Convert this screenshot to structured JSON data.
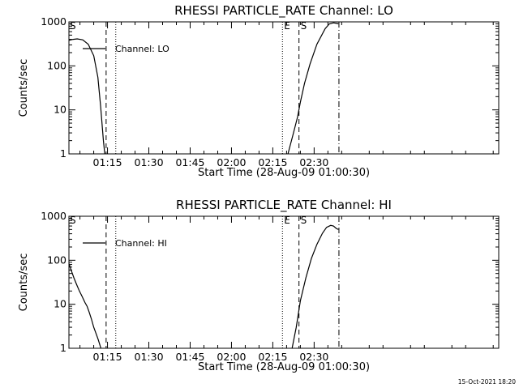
{
  "footer": {
    "timestamp": "15-Oct-2021 18:20"
  },
  "chart_data": [
    {
      "type": "line",
      "title": "RHESSI PARTICLE_RATE Channel: LO",
      "xlabel": "Start Time (28-Aug-09 01:00:30)",
      "ylabel": "Counts/sec",
      "yscale": "log",
      "ylim": [
        1,
        1000
      ],
      "xlim_min": [
        1.0,
        157.0
      ],
      "x_ticks_min": [
        15,
        30,
        45,
        60,
        75,
        90
      ],
      "x_tick_labels": [
        "01:15",
        "01:30",
        "01:45",
        "02:00",
        "02:15",
        "02:30"
      ],
      "y_ticks": [
        1,
        10,
        100,
        1000
      ],
      "y_tick_labels": [
        "1",
        "10",
        "100",
        "1000"
      ],
      "legend": {
        "placement": "top-left",
        "entries": [
          "Channel: LO"
        ]
      },
      "series": [
        {
          "x_min": [
            1.0,
            2.5,
            4.0,
            6.0,
            8.0,
            10.0,
            11.5,
            12.5,
            13.5,
            14.0
          ],
          "y": [
            380,
            400,
            410,
            390,
            310,
            170,
            55,
            12,
            2,
            1
          ]
        },
        {
          "x_min": [
            80.5,
            82.5,
            84.0,
            85.0,
            86.5,
            88.5,
            91.0,
            94.0,
            95.5,
            97.0,
            98.5,
            98.8
          ],
          "y": [
            1,
            3,
            7,
            15,
            40,
            110,
            310,
            700,
            900,
            950,
            920,
            900
          ]
        }
      ],
      "vlines": [
        {
          "x_min": 14.5,
          "style": "dashed",
          "label": ""
        },
        {
          "x_min": 18.0,
          "style": "dotted",
          "label": ""
        },
        {
          "x_min": 78.5,
          "style": "dotted",
          "label": "E"
        },
        {
          "x_min": 84.5,
          "style": "dashed",
          "label": "S"
        },
        {
          "x_min": 99.0,
          "style": "dashdot",
          "label": ""
        }
      ],
      "corner_label": "S"
    },
    {
      "type": "line",
      "title": "RHESSI PARTICLE_RATE Channel: HI",
      "xlabel": "Start Time (28-Aug-09 01:00:30)",
      "ylabel": "Counts/sec",
      "yscale": "log",
      "ylim": [
        1,
        1000
      ],
      "xlim_min": [
        1.0,
        157.0
      ],
      "x_ticks_min": [
        15,
        30,
        45,
        60,
        75,
        90
      ],
      "x_tick_labels": [
        "01:15",
        "01:30",
        "01:45",
        "02:00",
        "02:15",
        "02:30"
      ],
      "y_ticks": [
        1,
        10,
        100,
        1000
      ],
      "y_tick_labels": [
        "1",
        "10",
        "100",
        "1000"
      ],
      "legend": {
        "placement": "top-left",
        "entries": [
          "Channel: HI"
        ]
      },
      "series": [
        {
          "x_min": [
            1.0,
            1.8,
            2.8,
            3.8,
            4.8,
            5.8,
            6.8,
            7.6,
            8.4,
            9.2,
            10.0,
            10.8,
            11.6,
            12.2,
            12.6
          ],
          "y": [
            85,
            60,
            40,
            28,
            20,
            15,
            11,
            9,
            6.5,
            4.5,
            3,
            2.2,
            1.6,
            1.2,
            1
          ]
        },
        {
          "x_min": [
            82.0,
            83.5,
            85.0,
            87.0,
            89.0,
            91.0,
            93.0,
            94.5,
            96.0,
            97.0,
            98.0,
            98.8
          ],
          "y": [
            1,
            3,
            12,
            40,
            110,
            230,
            410,
            560,
            620,
            600,
            530,
            500
          ]
        }
      ],
      "vlines": [
        {
          "x_min": 14.5,
          "style": "dashed",
          "label": ""
        },
        {
          "x_min": 18.0,
          "style": "dotted",
          "label": ""
        },
        {
          "x_min": 78.5,
          "style": "dotted",
          "label": "E"
        },
        {
          "x_min": 84.5,
          "style": "dashed",
          "label": "S"
        },
        {
          "x_min": 99.0,
          "style": "dashdot",
          "label": ""
        }
      ],
      "corner_label": "S"
    }
  ]
}
